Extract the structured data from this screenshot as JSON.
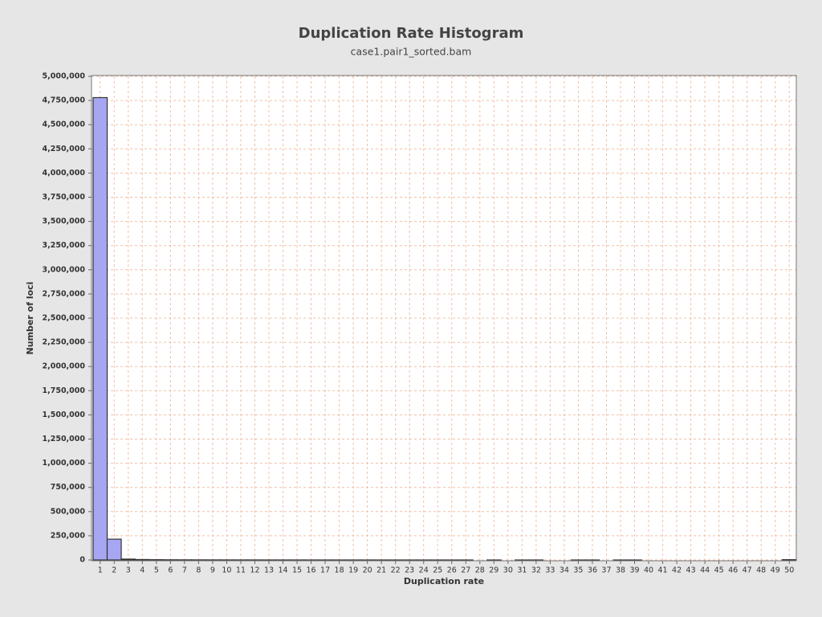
{
  "chart_data": {
    "type": "bar",
    "title": "Duplication Rate Histogram",
    "subtitle": "case1.pair1_sorted.bam",
    "x_label": "Duplication rate",
    "y_label": "Number of loci",
    "color": "#a6a6f2",
    "edge_color": "#333333",
    "grid": true,
    "categories": [
      "1",
      "2",
      "3",
      "4",
      "5",
      "6",
      "7",
      "8",
      "9",
      "10",
      "11",
      "12",
      "13",
      "14",
      "15",
      "16",
      "17",
      "18",
      "19",
      "20",
      "21",
      "22",
      "23",
      "24",
      "25",
      "26",
      "27",
      "28",
      "29",
      "30",
      "31",
      "32",
      "33",
      "34",
      "35",
      "36",
      "37",
      "38",
      "39",
      "40",
      "41",
      "42",
      "43",
      "44",
      "45",
      "46",
      "47",
      "48",
      "49",
      "50"
    ],
    "values": [
      4780000,
      215000,
      9000,
      4500,
      2800,
      1900,
      1400,
      1100,
      900,
      750,
      600,
      500,
      420,
      360,
      310,
      270,
      230,
      200,
      180,
      160,
      140,
      120,
      110,
      100,
      90,
      80,
      70,
      0,
      50,
      0,
      40,
      35,
      0,
      0,
      25,
      20,
      0,
      15,
      12,
      0,
      0,
      0,
      0,
      0,
      0,
      0,
      0,
      0,
      0,
      3000
    ],
    "ylim": [
      0,
      5000000
    ],
    "yticks": [
      {
        "value": 0,
        "label": "0"
      },
      {
        "value": 250000,
        "label": "250,000"
      },
      {
        "value": 500000,
        "label": "500,000"
      },
      {
        "value": 750000,
        "label": "750,000"
      },
      {
        "value": 1000000,
        "label": "1,000,000"
      },
      {
        "value": 1250000,
        "label": "1,250,000"
      },
      {
        "value": 1500000,
        "label": "1,500,000"
      },
      {
        "value": 1750000,
        "label": "1,750,000"
      },
      {
        "value": 2000000,
        "label": "2,000,000"
      },
      {
        "value": 2250000,
        "label": "2,250,000"
      },
      {
        "value": 2500000,
        "label": "2,500,000"
      },
      {
        "value": 2750000,
        "label": "2,750,000"
      },
      {
        "value": 3000000,
        "label": "3,000,000"
      },
      {
        "value": 3250000,
        "label": "3,250,000"
      },
      {
        "value": 3500000,
        "label": "3,500,000"
      },
      {
        "value": 3750000,
        "label": "3,750,000"
      },
      {
        "value": 4000000,
        "label": "4,000,000"
      },
      {
        "value": 4250000,
        "label": "4,250,000"
      },
      {
        "value": 4500000,
        "label": "4,500,000"
      },
      {
        "value": 4750000,
        "label": "4,750,000"
      },
      {
        "value": 5000000,
        "label": "5,000,000"
      }
    ]
  }
}
